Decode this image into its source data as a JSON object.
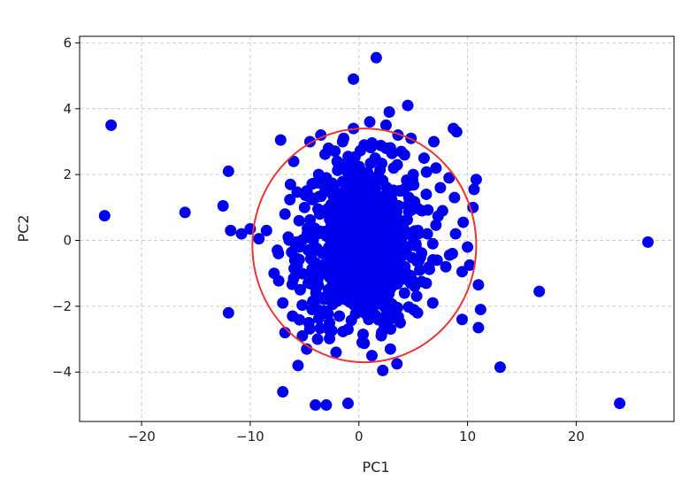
{
  "chart_data": {
    "type": "scatter",
    "xlabel": "PC1",
    "ylabel": "PC2",
    "xlim": [
      -25.7,
      29.0
    ],
    "ylim": [
      -5.5,
      6.2
    ],
    "xticks": [
      -20,
      -10,
      0,
      10,
      20
    ],
    "yticks": [
      -4,
      -2,
      0,
      2,
      4,
      6
    ],
    "xtick_labels": [
      "−20",
      "−10",
      "0",
      "10",
      "20"
    ],
    "ytick_labels": [
      "−4",
      "−2",
      "0",
      "2",
      "4",
      "6"
    ],
    "grid": true,
    "point_color": "#0000ee",
    "ellipse_color": "#ee3333",
    "ellipse": {
      "cx": 0.5,
      "cy": -0.15,
      "rx": 10.3,
      "ry": 3.55
    },
    "points": [
      [
        -22.8,
        3.5
      ],
      [
        -23.4,
        0.75
      ],
      [
        -16.0,
        0.85
      ],
      [
        -12.5,
        1.05
      ],
      [
        -12.0,
        2.1
      ],
      [
        -11.8,
        0.3
      ],
      [
        -12.0,
        -2.2
      ],
      [
        -10.8,
        0.2
      ],
      [
        -10.0,
        0.35
      ],
      [
        -9.2,
        0.05
      ],
      [
        -8.5,
        0.3
      ],
      [
        -7.2,
        3.05
      ],
      [
        -7.0,
        -4.6
      ],
      [
        -7.5,
        -0.3
      ],
      [
        -7.8,
        -1.0
      ],
      [
        -6.8,
        -2.8
      ],
      [
        -5.6,
        -3.8
      ],
      [
        -4.8,
        -3.3
      ],
      [
        -4.0,
        -5.0
      ],
      [
        -3.0,
        -5.0
      ],
      [
        -1.0,
        -4.95
      ],
      [
        1.2,
        -3.5
      ],
      [
        2.2,
        -3.95
      ],
      [
        3.5,
        -3.75
      ],
      [
        1.0,
        3.6
      ],
      [
        1.6,
        5.55
      ],
      [
        -0.5,
        4.9
      ],
      [
        2.8,
        3.9
      ],
      [
        4.5,
        4.1
      ],
      [
        2.5,
        3.5
      ],
      [
        4.8,
        3.1
      ],
      [
        6.9,
        3.0
      ],
      [
        8.7,
        3.4
      ],
      [
        9.0,
        3.3
      ],
      [
        10.8,
        1.85
      ],
      [
        10.6,
        1.55
      ],
      [
        10.5,
        1.0
      ],
      [
        9.6,
        0.55
      ],
      [
        10.0,
        -0.2
      ],
      [
        9.5,
        -0.95
      ],
      [
        10.2,
        -0.75
      ],
      [
        11.0,
        -1.35
      ],
      [
        11.2,
        -2.1
      ],
      [
        11.0,
        -2.65
      ],
      [
        9.5,
        -2.4
      ],
      [
        6.8,
        -1.9
      ],
      [
        8.0,
        -0.8
      ],
      [
        13.0,
        -3.85
      ],
      [
        16.6,
        -1.55
      ],
      [
        26.6,
        -0.05
      ],
      [
        24.0,
        -4.95
      ],
      [
        -4.5,
        3.0
      ],
      [
        -3.5,
        3.2
      ],
      [
        -2.8,
        2.8
      ],
      [
        -1.5,
        3.0
      ],
      [
        -0.5,
        3.4
      ],
      [
        0.5,
        2.9
      ],
      [
        3.6,
        3.2
      ],
      [
        4.2,
        2.6
      ],
      [
        6.0,
        2.5
      ],
      [
        7.1,
        2.2
      ],
      [
        8.3,
        1.9
      ],
      [
        8.8,
        1.3
      ],
      [
        8.9,
        0.2
      ],
      [
        8.6,
        -0.4
      ],
      [
        -6.0,
        2.4
      ],
      [
        -6.3,
        1.7
      ],
      [
        -6.8,
        0.8
      ],
      [
        -7.4,
        -0.4
      ],
      [
        -7.0,
        -1.9
      ],
      [
        -6.1,
        -2.3
      ],
      [
        -5.2,
        -2.9
      ],
      [
        -3.8,
        -3.0
      ],
      [
        -2.1,
        -3.4
      ],
      [
        0.3,
        -3.1
      ],
      [
        2.1,
        -2.8
      ],
      [
        3.8,
        -2.5
      ],
      [
        5.4,
        -2.2
      ],
      [
        6.2,
        -1.3
      ],
      [
        7.2,
        -0.6
      ],
      [
        7.7,
        0.9
      ],
      [
        7.5,
        1.6
      ],
      [
        6.2,
        1.4
      ],
      [
        5.0,
        2.0
      ],
      [
        3.2,
        2.2
      ],
      [
        1.5,
        2.5
      ],
      [
        -0.3,
        2.2
      ],
      [
        -2.0,
        2.4
      ],
      [
        -3.7,
        2.0
      ],
      [
        -4.8,
        1.5
      ],
      [
        -5.5,
        0.6
      ],
      [
        -5.9,
        -0.6
      ],
      [
        -5.4,
        -1.5
      ],
      [
        -4.3,
        -2.1
      ],
      [
        -2.7,
        -2.5
      ],
      [
        -1.0,
        -2.7
      ],
      [
        0.9,
        -2.4
      ],
      [
        2.7,
        -2.0
      ],
      [
        4.2,
        -1.6
      ],
      [
        5.6,
        -0.9
      ],
      [
        6.3,
        0.2
      ],
      [
        5.8,
        0.9
      ],
      [
        4.6,
        1.3
      ],
      [
        3.0,
        1.5
      ],
      [
        1.2,
        1.6
      ],
      [
        -0.6,
        1.5
      ],
      [
        -2.3,
        1.3
      ],
      [
        -3.6,
        0.8
      ],
      [
        -4.2,
        0.0
      ],
      [
        -3.9,
        -0.9
      ],
      [
        -2.8,
        -1.5
      ],
      [
        -1.2,
        -1.8
      ],
      [
        0.6,
        -1.7
      ],
      [
        2.2,
        -1.3
      ],
      [
        3.5,
        -0.7
      ],
      [
        4.0,
        0.1
      ],
      [
        3.3,
        0.8
      ],
      [
        1.8,
        1.0
      ],
      [
        0.1,
        0.9
      ],
      [
        -1.5,
        0.6
      ],
      [
        -2.4,
        0.0
      ],
      [
        -2.0,
        -0.8
      ],
      [
        -0.6,
        -1.1
      ],
      [
        1.0,
        -0.9
      ],
      [
        2.1,
        -0.3
      ],
      [
        1.7,
        0.4
      ],
      [
        0.3,
        0.3
      ],
      [
        -0.9,
        -0.2
      ],
      [
        0.5,
        -0.5
      ],
      [
        -3.0,
        1.9
      ],
      [
        -1.8,
        -2.3
      ],
      [
        2.5,
        2.8
      ],
      [
        4.9,
        -1.2
      ],
      [
        -5.0,
        1.0
      ],
      [
        6.8,
        -0.1
      ],
      [
        -6.5,
        0.1
      ],
      [
        3.9,
        2.7
      ],
      [
        -4.6,
        -2.5
      ],
      [
        2.9,
        -3.3
      ],
      [
        -1.4,
        3.1
      ]
    ]
  }
}
